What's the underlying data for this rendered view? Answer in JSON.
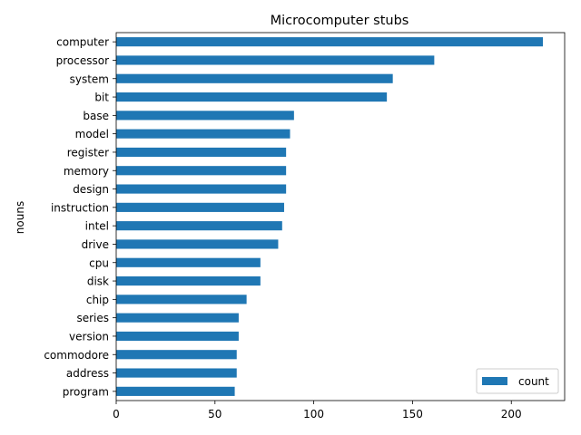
{
  "chart_data": {
    "type": "bar",
    "orientation": "horizontal",
    "title": "Microcomputer stubs",
    "ylabel": "nouns",
    "xlabel": "",
    "categories": [
      "computer",
      "processor",
      "system",
      "bit",
      "base",
      "model",
      "register",
      "memory",
      "design",
      "instruction",
      "intel",
      "drive",
      "cpu",
      "disk",
      "chip",
      "series",
      "version",
      "commodore",
      "address",
      "program"
    ],
    "series": [
      {
        "name": "count",
        "color": "#1f77b4",
        "values": [
          216,
          161,
          140,
          137,
          90,
          88,
          86,
          86,
          86,
          85,
          84,
          82,
          73,
          73,
          66,
          62,
          62,
          61,
          61,
          60
        ]
      }
    ],
    "xlim": [
      0,
      227
    ],
    "xticks": [
      0,
      50,
      100,
      150,
      200
    ],
    "legend_position": "lower-right",
    "grid": false
  }
}
